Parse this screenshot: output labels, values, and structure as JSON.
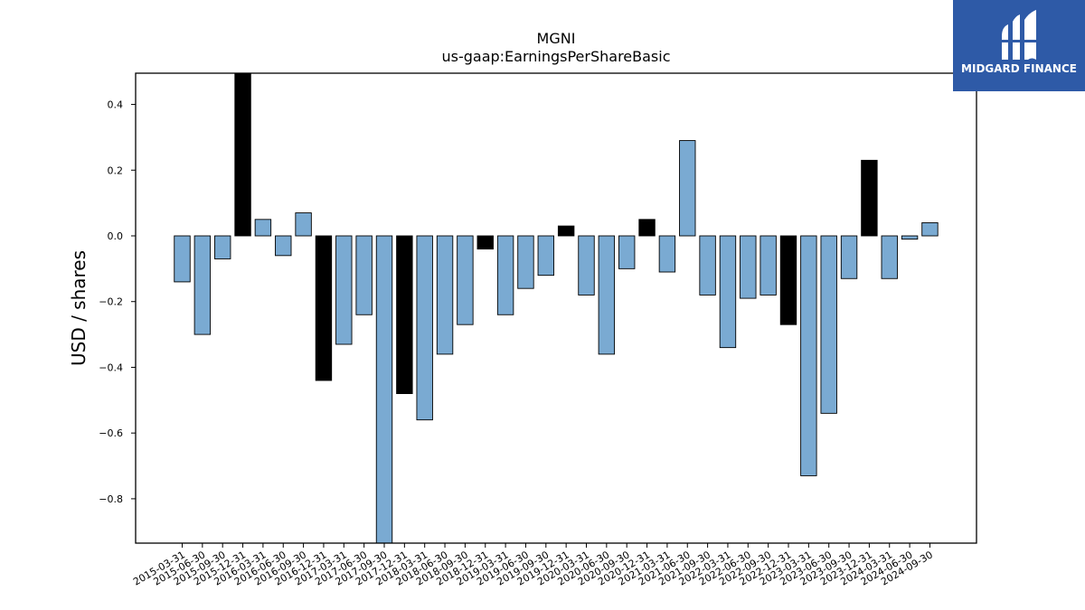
{
  "chart_data": {
    "type": "bar",
    "title": "MGNI",
    "subtitle": "us-gaap:EarningsPerShareBasic",
    "xlabel": "",
    "ylabel": "USD / shares",
    "ylim": [
      -0.935,
      0.495
    ],
    "yticks": [
      "0.4",
      "0.2",
      "0.0",
      "−0.2",
      "−0.4",
      "−0.6",
      "−0.8"
    ],
    "grid": false,
    "legend": "none",
    "colors": {
      "quarter": "#7aaad2",
      "annual": "#000000",
      "edge": "#000000"
    },
    "categories": [
      "2015-03-31",
      "2015-06-30",
      "2015-09-30",
      "2015-12-31",
      "2016-03-31",
      "2016-06-30",
      "2016-09-30",
      "2016-12-31",
      "2017-03-31",
      "2017-06-30",
      "2017-09-30",
      "2017-12-31",
      "2018-03-31",
      "2018-06-30",
      "2018-09-30",
      "2018-12-31",
      "2019-03-31",
      "2019-06-30",
      "2019-09-30",
      "2019-12-31",
      "2020-03-31",
      "2020-06-30",
      "2020-09-30",
      "2020-12-31",
      "2021-03-31",
      "2021-06-30",
      "2021-09-30",
      "2022-03-31",
      "2022-06-30",
      "2022-09-30",
      "2022-12-31",
      "2023-03-31",
      "2023-06-30",
      "2023-09-30",
      "2023-12-31",
      "2024-03-31",
      "2024-06-30",
      "2024-09-30"
    ],
    "values": [
      -0.14,
      -0.3,
      -0.07,
      0.495,
      0.05,
      -0.06,
      0.07,
      -0.44,
      -0.33,
      -0.24,
      -0.935,
      -0.48,
      -0.56,
      -0.36,
      -0.27,
      -0.04,
      -0.24,
      -0.16,
      -0.12,
      0.03,
      -0.18,
      -0.36,
      -0.1,
      0.05,
      -0.11,
      0.29,
      -0.18,
      -0.34,
      -0.19,
      -0.18,
      -0.27,
      -0.73,
      -0.54,
      -0.13,
      0.23,
      -0.13,
      -0.01,
      0.04
    ],
    "annual": [
      false,
      false,
      false,
      true,
      false,
      false,
      false,
      true,
      false,
      false,
      false,
      true,
      false,
      false,
      false,
      true,
      false,
      false,
      false,
      true,
      false,
      false,
      false,
      true,
      false,
      false,
      false,
      false,
      false,
      false,
      true,
      false,
      false,
      false,
      true,
      false,
      false,
      false
    ]
  },
  "brand": {
    "name": "MIDGARD FINANCE",
    "color": "#2e5aa7"
  }
}
